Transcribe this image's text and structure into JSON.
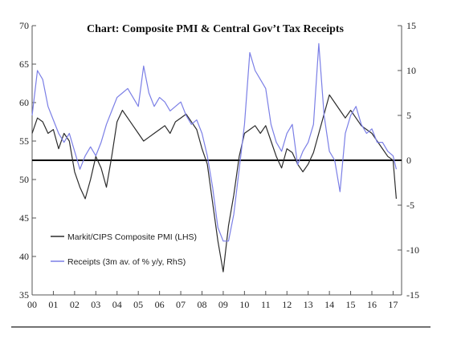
{
  "chart_data": {
    "type": "line",
    "title": "Chart: Composite PMI & Central Gov’t Tax Receipts",
    "x_tick_labels": [
      "00",
      "01",
      "02",
      "03",
      "04",
      "05",
      "06",
      "07",
      "08",
      "09",
      "10",
      "11",
      "12",
      "13",
      "14",
      "15",
      "16",
      "17"
    ],
    "xlim": [
      2000.0,
      2017.4
    ],
    "y_left_lim": [
      35,
      70
    ],
    "y_left_ticks": [
      "35",
      "40",
      "45",
      "50",
      "55",
      "60",
      "65",
      "70"
    ],
    "y_right_lim": [
      -15,
      15
    ],
    "y_right_ticks": [
      "-15",
      "-10",
      "-5",
      "0",
      "5",
      "10",
      "15"
    ],
    "reference_line_right": 0,
    "grid": false,
    "legend_placement": "bottom-left",
    "colors": {
      "pmi": "#2b2b2b",
      "receipts": "#7b7fe6",
      "reference": "#000000",
      "axis": "#555555"
    },
    "series": [
      {
        "name": "Markit/CIPS Composite PMI (LHS)",
        "axis": "left",
        "x": [
          2000.0,
          2000.25,
          2000.5,
          2000.75,
          2001.0,
          2001.25,
          2001.5,
          2001.75,
          2002.0,
          2002.25,
          2002.5,
          2002.75,
          2003.0,
          2003.25,
          2003.5,
          2003.75,
          2004.0,
          2004.25,
          2004.5,
          2004.75,
          2005.0,
          2005.25,
          2005.5,
          2005.75,
          2006.0,
          2006.25,
          2006.5,
          2006.75,
          2007.0,
          2007.25,
          2007.5,
          2007.75,
          2008.0,
          2008.25,
          2008.5,
          2008.75,
          2009.0,
          2009.25,
          2009.5,
          2009.75,
          2010.0,
          2010.25,
          2010.5,
          2010.75,
          2011.0,
          2011.25,
          2011.5,
          2011.75,
          2012.0,
          2012.25,
          2012.5,
          2012.75,
          2013.0,
          2013.25,
          2013.5,
          2013.75,
          2014.0,
          2014.25,
          2014.5,
          2014.75,
          2015.0,
          2015.25,
          2015.5,
          2015.75,
          2016.0,
          2016.25,
          2016.5,
          2016.75,
          2017.0,
          2017.15
        ],
        "values": [
          56.0,
          58.0,
          57.5,
          56.0,
          56.5,
          54.0,
          56.0,
          55.0,
          51.0,
          49.0,
          47.5,
          50.0,
          53.0,
          51.5,
          49.0,
          53.0,
          57.5,
          59.0,
          58.0,
          57.0,
          56.0,
          55.0,
          55.5,
          56.0,
          56.5,
          57.0,
          56.0,
          57.5,
          58.0,
          58.5,
          57.5,
          56.5,
          54.0,
          52.0,
          47.0,
          42.0,
          38.0,
          44.0,
          48.0,
          53.0,
          56.0,
          56.5,
          57.0,
          56.0,
          57.0,
          55.0,
          53.0,
          51.5,
          54.0,
          53.5,
          52.0,
          51.0,
          52.0,
          53.5,
          56.0,
          58.5,
          61.0,
          60.0,
          59.0,
          58.0,
          59.0,
          58.0,
          57.0,
          56.5,
          56.0,
          55.0,
          54.0,
          53.0,
          52.5,
          47.5
        ]
      },
      {
        "name": "Receipts (3m av. of % y/y, RhS)",
        "axis": "right",
        "x": [
          2000.0,
          2000.25,
          2000.5,
          2000.75,
          2001.0,
          2001.25,
          2001.5,
          2001.75,
          2002.0,
          2002.25,
          2002.5,
          2002.75,
          2003.0,
          2003.25,
          2003.5,
          2003.75,
          2004.0,
          2004.25,
          2004.5,
          2004.75,
          2005.0,
          2005.25,
          2005.5,
          2005.75,
          2006.0,
          2006.25,
          2006.5,
          2006.75,
          2007.0,
          2007.25,
          2007.5,
          2007.75,
          2008.0,
          2008.25,
          2008.5,
          2008.75,
          2009.0,
          2009.25,
          2009.5,
          2009.75,
          2010.0,
          2010.25,
          2010.5,
          2010.75,
          2011.0,
          2011.25,
          2011.5,
          2011.75,
          2012.0,
          2012.25,
          2012.5,
          2012.75,
          2013.0,
          2013.25,
          2013.5,
          2013.75,
          2014.0,
          2014.25,
          2014.5,
          2014.75,
          2015.0,
          2015.25,
          2015.5,
          2015.75,
          2016.0,
          2016.25,
          2016.5,
          2016.75,
          2017.0,
          2017.15
        ],
        "values": [
          5.0,
          10.0,
          9.0,
          6.0,
          4.5,
          3.0,
          2.0,
          3.0,
          1.0,
          -1.0,
          0.5,
          1.5,
          0.5,
          2.0,
          4.0,
          5.5,
          7.0,
          7.5,
          8.0,
          7.0,
          6.0,
          10.5,
          7.5,
          6.0,
          7.0,
          6.5,
          5.5,
          6.0,
          6.5,
          5.0,
          4.0,
          4.5,
          3.0,
          0.5,
          -3.0,
          -7.5,
          -9.0,
          -9.0,
          -6.0,
          -1.0,
          4.0,
          12.0,
          10.0,
          9.0,
          8.0,
          4.0,
          2.0,
          1.0,
          3.0,
          4.0,
          -0.5,
          1.0,
          2.0,
          4.0,
          13.0,
          5.0,
          1.0,
          0.0,
          -3.5,
          3.0,
          5.0,
          6.0,
          4.0,
          3.0,
          3.5,
          2.0,
          2.0,
          1.0,
          0.5,
          -1.0
        ]
      }
    ]
  }
}
